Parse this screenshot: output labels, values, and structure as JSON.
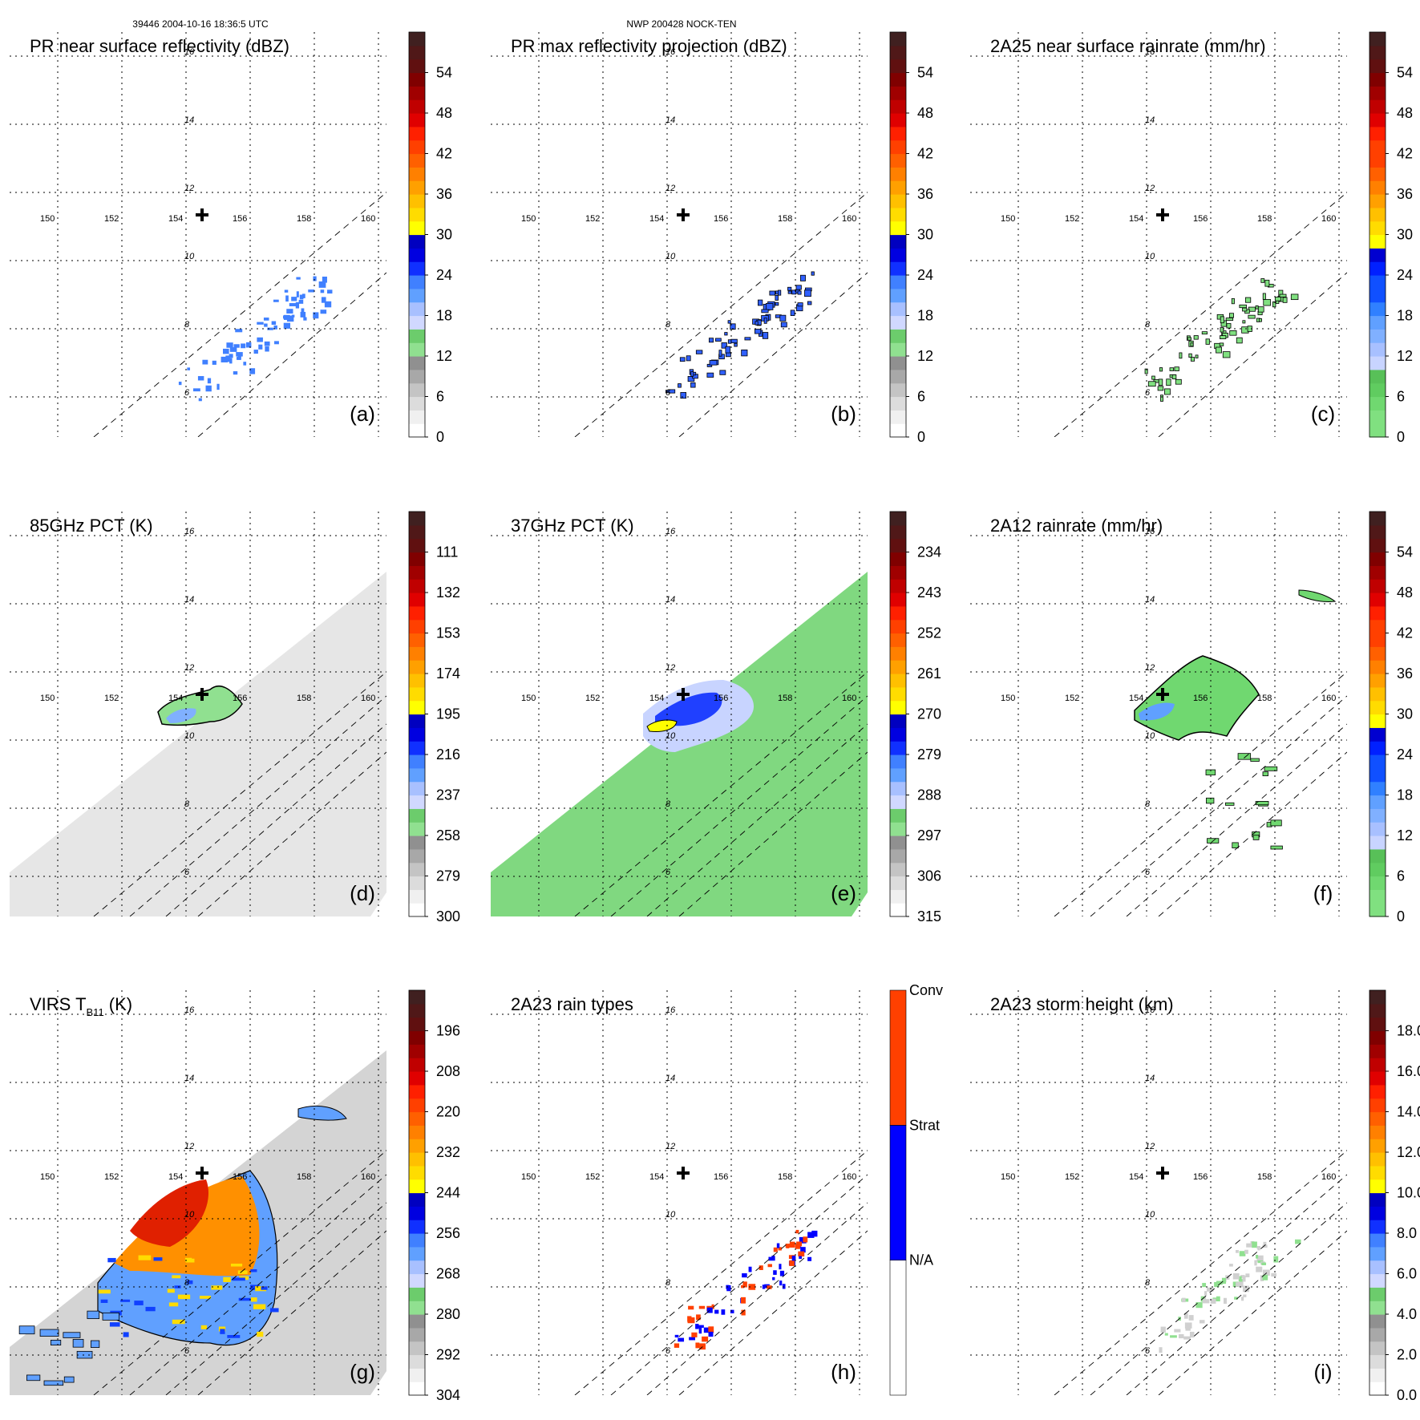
{
  "header": {
    "orbit_time": "39446 2004-10-16 18:36:5 UTC",
    "storm": "NWP 200428 NOCK-TEN"
  },
  "map_grid": {
    "lon_labels": [
      "150",
      "152",
      "154",
      "156",
      "158",
      "160"
    ],
    "lat_labels": [
      "16",
      "14",
      "12",
      "10",
      "8",
      "6"
    ],
    "storm_center_marker": "plus-marker"
  },
  "panels": [
    {
      "id": "a",
      "title": "PR near surface reflectivity (dBZ)",
      "label": "(a)",
      "field": "pr",
      "colorbar": {
        "type": "dbz",
        "ticks": [
          "0",
          "6",
          "12",
          "18",
          "24",
          "30",
          "36",
          "42",
          "48",
          "54"
        ]
      }
    },
    {
      "id": "b",
      "title": "PR max reflectivity projection (dBZ)",
      "label": "(b)",
      "field": "prmax",
      "colorbar": {
        "type": "dbz",
        "ticks": [
          "0",
          "6",
          "12",
          "18",
          "24",
          "30",
          "36",
          "42",
          "48",
          "54"
        ]
      }
    },
    {
      "id": "c",
      "title": "2A25 near surface rainrate (mm/hr)",
      "label": "(c)",
      "field": "rr25",
      "colorbar": {
        "type": "rain",
        "ticks": [
          "0",
          "6",
          "12",
          "18",
          "24",
          "30",
          "36",
          "42",
          "48",
          "54"
        ]
      }
    },
    {
      "id": "d",
      "title": "85GHz PCT (K)",
      "label": "(d)",
      "field": "pct85",
      "colorbar": {
        "type": "dbz",
        "ticks": [
          "300",
          "279",
          "258",
          "237",
          "216",
          "195",
          "174",
          "153",
          "132",
          "111"
        ]
      }
    },
    {
      "id": "e",
      "title": "37GHz PCT (K)",
      "label": "(e)",
      "field": "pct37",
      "colorbar": {
        "type": "dbz",
        "ticks": [
          "315",
          "306",
          "297",
          "288",
          "279",
          "270",
          "261",
          "252",
          "243",
          "234"
        ]
      }
    },
    {
      "id": "f",
      "title": "2A12 rainrate (mm/hr)",
      "label": "(f)",
      "field": "rr12",
      "colorbar": {
        "type": "rain",
        "ticks": [
          "0",
          "6",
          "12",
          "18",
          "24",
          "30",
          "36",
          "42",
          "48",
          "54"
        ]
      }
    },
    {
      "id": "g",
      "title": "VIRS T",
      "title_sub": "B11",
      "title_suffix": " (K)",
      "label": "(g)",
      "field": "virs",
      "colorbar": {
        "type": "dbz",
        "ticks": [
          "304",
          "292",
          "280",
          "268",
          "256",
          "244",
          "232",
          "220",
          "208",
          "196"
        ]
      }
    },
    {
      "id": "h",
      "title": "2A23 rain types",
      "label": "(h)",
      "field": "raintype",
      "colorbar": {
        "type": "cat",
        "labels": [
          "N/A",
          "Strat",
          "Conv"
        ]
      }
    },
    {
      "id": "i",
      "title": "2A23 storm height (km)",
      "label": "(i)",
      "field": "height",
      "colorbar": {
        "type": "dbz",
        "ticks": [
          "0.0",
          "2.0",
          "4.0",
          "6.0",
          "8.0",
          "10.0",
          "12.0",
          "14.0",
          "16.0",
          "18.0"
        ]
      }
    }
  ],
  "colors": {
    "dbz_scale": [
      "#ffffff",
      "#f0f0f0",
      "#dcdcdc",
      "#c4c4c4",
      "#a8a8a8",
      "#909090",
      "#90e090",
      "#6ccc6c",
      "#d0d8ff",
      "#a8c0ff",
      "#60a0ff",
      "#4080ff",
      "#1030ff",
      "#0000e0",
      "#0000c0",
      "#ffff00",
      "#ffdc00",
      "#ffc000",
      "#ffa000",
      "#ff8000",
      "#ff6000",
      "#ff4000",
      "#ff2000",
      "#e00000",
      "#c00000",
      "#a00000",
      "#800000",
      "#601010",
      "#501818",
      "#402020"
    ],
    "rain_scale": [
      "#80e080",
      "#70d870",
      "#60cc60",
      "#58c058",
      "#c8d4ff",
      "#a8c0ff",
      "#80b0ff",
      "#60a0ff",
      "#3080ff",
      "#1050ff",
      "#0020ff",
      "#0000d0",
      "#ffff00",
      "#ffdc00",
      "#ffc000",
      "#ffa000",
      "#ff8000",
      "#ff6000",
      "#ff4000",
      "#ff2000",
      "#e00000",
      "#c00000",
      "#a00000",
      "#800000",
      "#601010",
      "#501818",
      "#402020"
    ],
    "cat_scale": [
      "#ffffff",
      "#0000ff",
      "#ff4000"
    ],
    "pct85_bg": "#e6e6e6",
    "pct37_bg": "#80d880",
    "virs_bg": "#d4d4d4"
  }
}
